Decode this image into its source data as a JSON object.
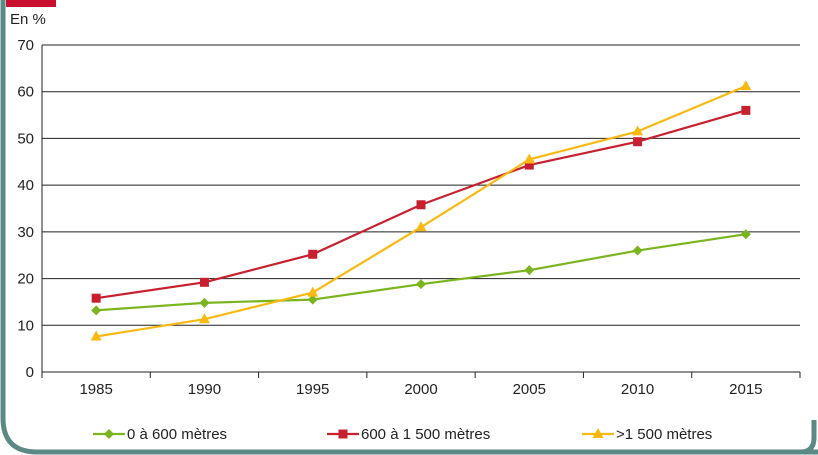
{
  "colors": {
    "frame": "#5b8a86",
    "tab": "#c8102e",
    "grid": "#222222"
  },
  "chart_data": {
    "type": "line",
    "title": "",
    "xlabel": "",
    "ylabel": "En %",
    "ylim": [
      0,
      70
    ],
    "yticks": [
      "0",
      "10",
      "20",
      "30",
      "40",
      "50",
      "60",
      "70"
    ],
    "categories": [
      "1985",
      "1990",
      "1995",
      "2000",
      "2005",
      "2010",
      "2015"
    ],
    "grid": true,
    "legend_position": "bottom",
    "series": [
      {
        "name": "0 à 600 mètres",
        "color": "#7ab51d",
        "marker": "diamond",
        "values": [
          13.2,
          14.8,
          15.5,
          18.8,
          21.8,
          26.0,
          29.5
        ]
      },
      {
        "name": "600 à 1 500 mètres",
        "color": "#c8202f",
        "marker": "square",
        "values": [
          15.8,
          19.2,
          25.2,
          35.8,
          44.3,
          49.3,
          56.0
        ]
      },
      {
        "name": ">1 500 mètres",
        "color": "#f9b910",
        "marker": "triangle",
        "values": [
          7.6,
          11.3,
          17.0,
          31.0,
          45.5,
          51.5,
          61.2
        ]
      }
    ]
  }
}
